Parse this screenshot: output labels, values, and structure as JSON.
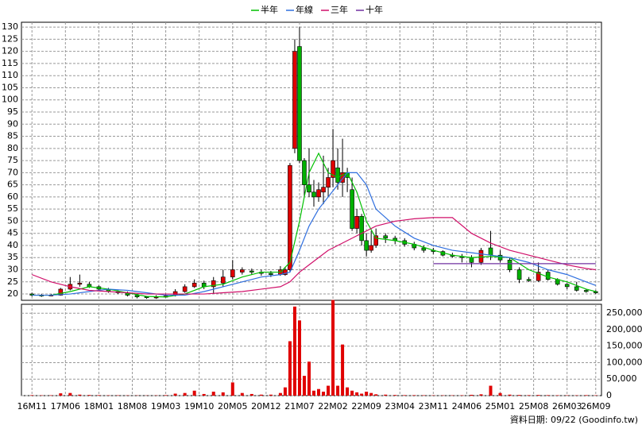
{
  "chart_data": [
    {
      "type": "candlestick",
      "up_color": "#e00000",
      "down_color": "#00b000",
      "grid": true,
      "xlim": [
        -2.2,
        119.2
      ],
      "ylim": [
        17.4,
        132
      ],
      "yticks": [
        20,
        25,
        30,
        35,
        40,
        45,
        50,
        55,
        60,
        65,
        70,
        75,
        80,
        85,
        90,
        95,
        100,
        105,
        110,
        115,
        120,
        125,
        130
      ],
      "x": [
        0,
        2,
        4,
        6,
        8,
        10,
        12,
        14,
        16,
        18,
        20,
        22,
        24,
        26,
        28,
        30,
        32,
        34,
        36,
        38,
        40,
        42,
        44,
        46,
        48,
        50,
        52,
        53,
        54,
        55,
        56,
        57,
        58,
        59,
        60,
        61,
        62,
        63,
        64,
        65,
        66,
        67,
        68,
        69,
        70,
        71,
        72,
        74,
        76,
        78,
        80,
        82,
        84,
        86,
        88,
        90,
        92,
        94,
        96,
        98,
        100,
        102,
        104,
        106,
        108,
        110,
        112,
        114,
        116,
        118
      ],
      "open": [
        20,
        19.5,
        19.2,
        19.5,
        22,
        24,
        24,
        23,
        22,
        21,
        20.5,
        19.5,
        18.8,
        18.5,
        18.7,
        19.5,
        21,
        23,
        24.5,
        23,
        24.5,
        27,
        29,
        29.5,
        29,
        28.5,
        28,
        28,
        30,
        80,
        122,
        75,
        65,
        62,
        60,
        62,
        64,
        68,
        72,
        66,
        70,
        63,
        47,
        52,
        42,
        38,
        40,
        44,
        43,
        42,
        40.5,
        39,
        38,
        37.5,
        36,
        35.5,
        35,
        33,
        39,
        36,
        34,
        30,
        26,
        25.5,
        29,
        26,
        24,
        23,
        21.5,
        21
      ],
      "close": [
        19.5,
        19.2,
        19.5,
        22,
        24,
        24.5,
        23,
        22,
        21,
        20.5,
        19.5,
        18.8,
        18.5,
        18.7,
        19.2,
        21,
        23,
        24.5,
        23,
        25.5,
        27,
        30,
        30,
        29,
        28.5,
        28,
        30,
        30,
        73,
        120,
        75,
        65,
        62,
        60,
        63,
        64,
        68,
        75,
        66,
        70,
        68,
        47,
        52,
        42,
        38,
        40,
        44,
        43,
        42,
        40.5,
        39,
        38,
        37.5,
        36,
        35.5,
        35,
        33,
        38,
        36,
        34,
        30,
        26,
        25.5,
        29,
        26,
        24,
        23,
        21.5,
        21,
        20.5
      ],
      "high": [
        20.5,
        20,
        20,
        22.5,
        27,
        28,
        25,
        23.5,
        22.5,
        21.5,
        21,
        20,
        19.2,
        19.5,
        20,
        22,
        24,
        26,
        25.5,
        27,
        30,
        34,
        31,
        30.5,
        30,
        29.5,
        31.5,
        31,
        74,
        125,
        130,
        76,
        80,
        67,
        66,
        77,
        72,
        88,
        80,
        84,
        72,
        68,
        55,
        53,
        45,
        46,
        47,
        45,
        44,
        43,
        41.5,
        40,
        39,
        38,
        37,
        36.5,
        36,
        39,
        46,
        38,
        35,
        31,
        27,
        33,
        30,
        26.5,
        24.5,
        25,
        22,
        21.5
      ],
      "low": [
        19,
        18.8,
        19,
        19.3,
        21.5,
        23,
        22.5,
        21.5,
        20.5,
        20,
        19,
        18.2,
        18,
        18,
        18.5,
        19,
        20.5,
        22.5,
        22,
        20,
        23,
        26,
        28,
        28,
        27.5,
        27,
        27.5,
        27.5,
        29,
        78,
        74,
        60,
        60,
        56,
        58,
        57,
        60,
        64,
        63,
        60,
        62,
        46,
        45,
        40,
        35.5,
        37,
        39,
        41,
        40.5,
        39.5,
        38,
        37,
        36.5,
        35.5,
        35,
        33,
        31,
        32,
        34,
        33,
        29,
        24.5,
        25,
        25,
        25.5,
        23.5,
        22,
        21,
        20.5,
        20
      ],
      "series": [
        {
          "name": "半年",
          "color": "#00c000",
          "x": [
            0,
            4,
            8,
            12,
            16,
            20,
            24,
            28,
            32,
            36,
            40,
            44,
            48,
            52,
            54,
            56,
            58,
            60,
            62,
            64,
            66,
            68,
            70,
            72,
            76,
            80,
            84,
            88,
            92,
            96,
            100,
            104,
            108,
            112,
            116,
            118
          ],
          "values": [
            19.5,
            19.5,
            21,
            23,
            22,
            20.5,
            19,
            18.8,
            20,
            23,
            24,
            27,
            29,
            29,
            33,
            50,
            70,
            78,
            70,
            68,
            70,
            62,
            50,
            43,
            42,
            40.5,
            38,
            36,
            35,
            35.5,
            35,
            30,
            27,
            25,
            22,
            21
          ]
        },
        {
          "name": "年線",
          "color": "#2f6fdf",
          "x": [
            0,
            4,
            8,
            12,
            16,
            20,
            24,
            28,
            32,
            36,
            40,
            44,
            48,
            52,
            54,
            56,
            58,
            60,
            62,
            64,
            66,
            68,
            70,
            72,
            76,
            80,
            84,
            88,
            92,
            96,
            100,
            104,
            108,
            112,
            116,
            118
          ],
          "values": [
            19.5,
            19.5,
            20,
            21,
            22,
            21.5,
            20.5,
            19.5,
            19.5,
            21,
            23,
            25,
            27,
            28,
            29,
            38,
            48,
            55,
            60,
            65,
            70,
            70,
            65,
            55,
            48,
            43,
            40,
            38,
            37,
            36,
            35,
            33,
            30,
            28,
            25,
            23.5
          ]
        },
        {
          "name": "三年",
          "color": "#d0106a",
          "x": [
            0,
            4,
            8,
            12,
            16,
            20,
            24,
            28,
            32,
            36,
            40,
            44,
            48,
            52,
            54,
            56,
            58,
            60,
            62,
            64,
            66,
            68,
            70,
            72,
            76,
            80,
            84,
            88,
            92,
            96,
            100,
            104,
            108,
            112,
            116,
            118
          ],
          "values": [
            28,
            25,
            23,
            21.5,
            21,
            20.5,
            20,
            20,
            20,
            20,
            20.5,
            21,
            22,
            23,
            25,
            29,
            32,
            35,
            38,
            40,
            42,
            44,
            46,
            48,
            50,
            51,
            51.5,
            51.5,
            45,
            41,
            38,
            36,
            34,
            32,
            30.5,
            30
          ]
        },
        {
          "name": "十年",
          "color": "#7030a0",
          "x": [
            84,
            118
          ],
          "values": [
            32.5,
            32.5
          ]
        }
      ]
    },
    {
      "type": "bar",
      "color": "#e00000",
      "grid": true,
      "xlim": [
        -2.2,
        119.2
      ],
      "ylim": [
        0,
        277000
      ],
      "yticks": [
        0,
        {
          "value": 50000,
          "label": "50,000"
        },
        {
          "value": 100000,
          "label": "100,000"
        },
        {
          "value": 150000,
          "label": "150,000"
        },
        {
          "value": 200000,
          "label": "200,000"
        },
        {
          "value": 250000,
          "label": "250,000"
        }
      ],
      "xticks": [
        {
          "value": 0,
          "label": "16M11"
        },
        {
          "value": 7,
          "label": "17M06"
        },
        {
          "value": 14,
          "label": "18M01"
        },
        {
          "value": 21,
          "label": "18M08"
        },
        {
          "value": 28,
          "label": "19M03"
        },
        {
          "value": 35,
          "label": "19M10"
        },
        {
          "value": 42,
          "label": "20M05"
        },
        {
          "value": 49,
          "label": "20M12"
        },
        {
          "value": 56,
          "label": "21M07"
        },
        {
          "value": 63,
          "label": "22M02"
        },
        {
          "value": 70,
          "label": "22M09"
        },
        {
          "value": 77,
          "label": "23M04"
        },
        {
          "value": 84,
          "label": "23M11"
        },
        {
          "value": 91,
          "label": "24M06"
        },
        {
          "value": 98,
          "label": "25M01"
        },
        {
          "value": 105,
          "label": "25M08"
        },
        {
          "value": 112,
          "label": "26M03"
        },
        {
          "value": 118,
          "label": "26M09"
        }
      ],
      "x": [
        0,
        2,
        4,
        6,
        8,
        10,
        12,
        14,
        16,
        18,
        20,
        22,
        24,
        26,
        28,
        30,
        32,
        34,
        36,
        38,
        40,
        42,
        44,
        46,
        48,
        50,
        52,
        53,
        54,
        55,
        56,
        57,
        58,
        59,
        60,
        61,
        62,
        63,
        64,
        65,
        66,
        67,
        68,
        69,
        70,
        71,
        72,
        74,
        76,
        78,
        80,
        82,
        84,
        86,
        88,
        90,
        92,
        94,
        96,
        98,
        100,
        102,
        104,
        106,
        108,
        110,
        112,
        114,
        116,
        118
      ],
      "values": [
        1500,
        1000,
        1200,
        7000,
        8000,
        3000,
        2000,
        1500,
        1000,
        1000,
        800,
        700,
        600,
        800,
        1500,
        6000,
        8000,
        15000,
        5000,
        12000,
        10000,
        40000,
        8000,
        5000,
        3000,
        3000,
        8000,
        25000,
        165000,
        270000,
        228000,
        60000,
        103000,
        15000,
        20000,
        12000,
        30000,
        290000,
        30000,
        155000,
        25000,
        15000,
        10000,
        6000,
        12000,
        8000,
        4000,
        3000,
        2000,
        1500,
        1500,
        1200,
        1000,
        1000,
        1000,
        1200,
        2500,
        4000,
        30000,
        8000,
        3000,
        2000,
        1500,
        2000,
        1500,
        1200,
        1000,
        1000,
        1500,
        1000
      ]
    },
    {
      "type": "text",
      "footer": "資料日期: 09/22 (Goodinfo.tw)"
    }
  ]
}
